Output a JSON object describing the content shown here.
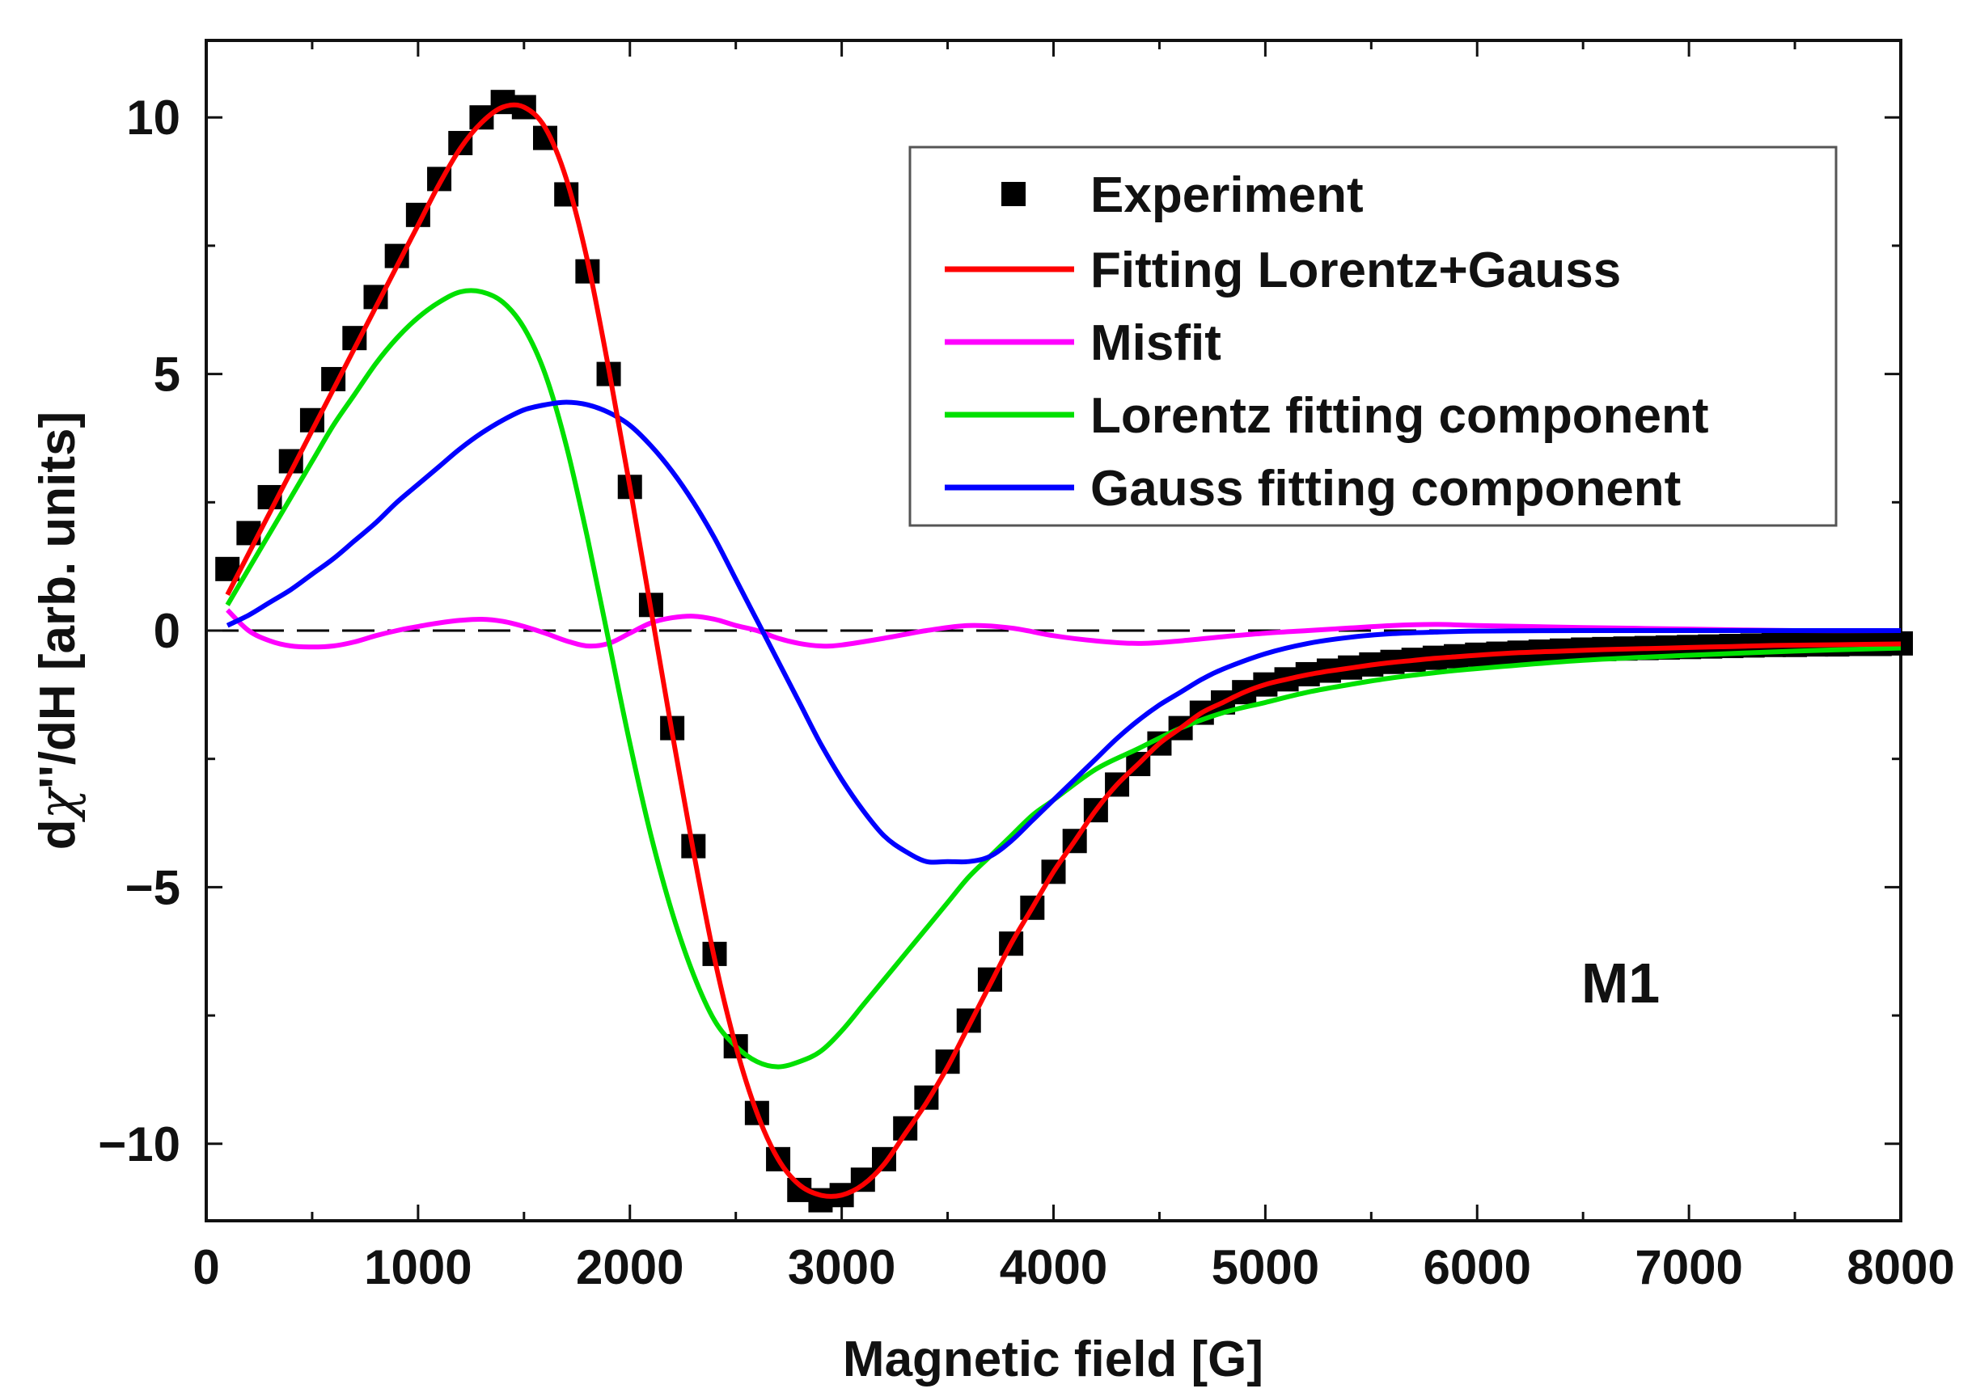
{
  "chart_data": {
    "type": "line",
    "title": "",
    "xlabel": "Magnetic field [G]",
    "ylabel_parts": {
      "pre": "d",
      "chi": "χ",
      "post": "''/dH [arb. units]"
    },
    "xlim": [
      0,
      8000
    ],
    "ylim": [
      -11.5,
      11.5
    ],
    "xticks": [
      0,
      1000,
      2000,
      3000,
      4000,
      5000,
      6000,
      7000,
      8000
    ],
    "xtick_labels": [
      "0",
      "1000",
      "2000",
      "3000",
      "4000",
      "5000",
      "6000",
      "7000",
      "8000"
    ],
    "yticks": [
      10,
      5,
      0,
      -5,
      -10
    ],
    "ytick_labels": [
      "10",
      "5",
      "0",
      "−5",
      "−10"
    ],
    "grid": false,
    "legend_position": "top-right",
    "annotation": "M1",
    "series": [
      {
        "name": "Experiment",
        "kind": "markers",
        "color": "#000000",
        "x": [
          100,
          200,
          300,
          400,
          500,
          600,
          700,
          800,
          900,
          1000,
          1100,
          1200,
          1300,
          1400,
          1500,
          1600,
          1700,
          1800,
          1900,
          2000,
          2100,
          2200,
          2300,
          2400,
          2500,
          2600,
          2700,
          2800,
          2900,
          3000,
          3100,
          3200,
          3300,
          3400,
          3500,
          3600,
          3700,
          3800,
          3900,
          4000,
          4100,
          4200,
          4300,
          4400,
          4500,
          4600,
          4700,
          4800,
          4900,
          5000,
          5100,
          5200,
          5300,
          5400,
          5500,
          5600,
          5700,
          5800,
          5900,
          6000,
          6100,
          6200,
          6300,
          6400,
          6500,
          6600,
          6700,
          6800,
          6900,
          7000,
          7100,
          7200,
          7300,
          7400,
          7500,
          7600,
          7700,
          7800,
          7900,
          8000
        ],
        "y": [
          1.2,
          1.9,
          2.6,
          3.3,
          4.1,
          4.9,
          5.7,
          6.5,
          7.3,
          8.1,
          8.8,
          9.5,
          10.0,
          10.3,
          10.2,
          9.6,
          8.5,
          7.0,
          5.0,
          2.8,
          0.5,
          -1.9,
          -4.2,
          -6.3,
          -8.1,
          -9.4,
          -10.3,
          -10.9,
          -11.1,
          -11.0,
          -10.7,
          -10.3,
          -9.7,
          -9.1,
          -8.4,
          -7.6,
          -6.8,
          -6.1,
          -5.4,
          -4.7,
          -4.1,
          -3.5,
          -3.0,
          -2.6,
          -2.2,
          -1.9,
          -1.6,
          -1.4,
          -1.2,
          -1.05,
          -0.95,
          -0.85,
          -0.78,
          -0.72,
          -0.66,
          -0.61,
          -0.57,
          -0.53,
          -0.5,
          -0.47,
          -0.45,
          -0.43,
          -0.41,
          -0.39,
          -0.37,
          -0.36,
          -0.35,
          -0.34,
          -0.33,
          -0.32,
          -0.31,
          -0.3,
          -0.29,
          -0.28,
          -0.28,
          -0.27,
          -0.27,
          -0.26,
          -0.26,
          -0.25
        ]
      },
      {
        "name": "Fitting Lorentz+Gauss",
        "kind": "line",
        "color": "#ff0000",
        "x": [
          100,
          200,
          300,
          400,
          500,
          600,
          700,
          800,
          900,
          1000,
          1100,
          1200,
          1300,
          1400,
          1500,
          1600,
          1700,
          1800,
          1900,
          2000,
          2100,
          2200,
          2300,
          2400,
          2500,
          2600,
          2700,
          2800,
          2900,
          3000,
          3100,
          3200,
          3300,
          3400,
          3500,
          3600,
          3700,
          3800,
          3900,
          4000,
          4100,
          4200,
          4300,
          4400,
          4500,
          4600,
          4700,
          4800,
          4900,
          5000,
          5100,
          5200,
          5300,
          5400,
          5500,
          5600,
          5700,
          5800,
          5900,
          6000,
          6200,
          6400,
          6600,
          6800,
          7000,
          7200,
          7400,
          7600,
          7800,
          8000
        ],
        "y": [
          0.7,
          1.5,
          2.3,
          3.1,
          3.9,
          4.7,
          5.5,
          6.3,
          7.1,
          7.9,
          8.7,
          9.4,
          9.9,
          10.2,
          10.2,
          9.8,
          8.8,
          7.2,
          5.1,
          2.8,
          0.4,
          -2.0,
          -4.3,
          -6.4,
          -8.1,
          -9.4,
          -10.3,
          -10.8,
          -11.0,
          -11.0,
          -10.8,
          -10.4,
          -9.8,
          -9.2,
          -8.5,
          -7.7,
          -6.9,
          -6.1,
          -5.4,
          -4.7,
          -4.1,
          -3.5,
          -3.0,
          -2.6,
          -2.2,
          -1.9,
          -1.6,
          -1.4,
          -1.2,
          -1.05,
          -0.95,
          -0.86,
          -0.79,
          -0.73,
          -0.67,
          -0.62,
          -0.58,
          -0.54,
          -0.51,
          -0.48,
          -0.43,
          -0.4,
          -0.37,
          -0.35,
          -0.33,
          -0.31,
          -0.29,
          -0.28,
          -0.27,
          -0.26
        ]
      },
      {
        "name": "Misfit",
        "kind": "line",
        "color": "#ff00ff",
        "x": [
          100,
          200,
          300,
          400,
          500,
          600,
          700,
          800,
          900,
          1000,
          1100,
          1200,
          1300,
          1400,
          1500,
          1600,
          1700,
          1800,
          1900,
          2000,
          2100,
          2200,
          2300,
          2400,
          2500,
          2600,
          2700,
          2800,
          2900,
          3000,
          3200,
          3400,
          3600,
          3800,
          4000,
          4200,
          4400,
          4600,
          4800,
          5000,
          5200,
          5400,
          5600,
          5800,
          6000,
          6500,
          7000,
          7500,
          8000
        ],
        "y": [
          0.4,
          0.0,
          -0.2,
          -0.3,
          -0.32,
          -0.3,
          -0.22,
          -0.1,
          0.0,
          0.08,
          0.15,
          0.2,
          0.22,
          0.18,
          0.08,
          -0.05,
          -0.2,
          -0.3,
          -0.25,
          -0.05,
          0.15,
          0.25,
          0.28,
          0.22,
          0.1,
          0.0,
          -0.15,
          -0.25,
          -0.3,
          -0.28,
          -0.15,
          0.0,
          0.1,
          0.05,
          -0.1,
          -0.2,
          -0.25,
          -0.2,
          -0.12,
          -0.05,
          0.0,
          0.05,
          0.1,
          0.12,
          0.1,
          0.06,
          0.03,
          0.0,
          0.0
        ]
      },
      {
        "name": "Lorentz fitting component",
        "kind": "line",
        "color": "#00e000",
        "x": [
          100,
          200,
          300,
          400,
          500,
          600,
          700,
          800,
          900,
          1000,
          1100,
          1200,
          1300,
          1400,
          1500,
          1600,
          1700,
          1800,
          1900,
          2000,
          2100,
          2200,
          2300,
          2400,
          2500,
          2600,
          2700,
          2800,
          2900,
          3000,
          3100,
          3200,
          3300,
          3400,
          3500,
          3600,
          3700,
          3800,
          3900,
          4000,
          4200,
          4400,
          4600,
          4800,
          5000,
          5200,
          5400,
          5600,
          5800,
          6000,
          6500,
          7000,
          7500,
          8000
        ],
        "y": [
          0.5,
          1.2,
          1.9,
          2.6,
          3.3,
          4.0,
          4.6,
          5.2,
          5.7,
          6.1,
          6.4,
          6.6,
          6.6,
          6.4,
          5.9,
          5.0,
          3.6,
          1.8,
          -0.2,
          -2.2,
          -4.0,
          -5.5,
          -6.7,
          -7.6,
          -8.1,
          -8.4,
          -8.5,
          -8.4,
          -8.2,
          -7.8,
          -7.3,
          -6.8,
          -6.3,
          -5.8,
          -5.3,
          -4.8,
          -4.4,
          -4.0,
          -3.6,
          -3.3,
          -2.7,
          -2.3,
          -1.9,
          -1.6,
          -1.4,
          -1.2,
          -1.05,
          -0.92,
          -0.82,
          -0.74,
          -0.58,
          -0.48,
          -0.4,
          -0.34
        ]
      },
      {
        "name": "Gauss fitting component",
        "kind": "line",
        "color": "#0000ff",
        "x": [
          100,
          200,
          300,
          400,
          500,
          600,
          700,
          800,
          900,
          1000,
          1100,
          1200,
          1300,
          1400,
          1500,
          1600,
          1700,
          1800,
          1900,
          2000,
          2100,
          2200,
          2300,
          2400,
          2500,
          2600,
          2700,
          2800,
          2900,
          3000,
          3100,
          3200,
          3300,
          3400,
          3500,
          3600,
          3700,
          3800,
          3900,
          4000,
          4100,
          4200,
          4300,
          4400,
          4500,
          4600,
          4700,
          4800,
          5000,
          5200,
          5400,
          5600,
          5800,
          6000,
          6500,
          7000,
          7500,
          8000
        ],
        "y": [
          0.1,
          0.3,
          0.55,
          0.8,
          1.1,
          1.4,
          1.75,
          2.1,
          2.5,
          2.85,
          3.2,
          3.55,
          3.85,
          4.1,
          4.3,
          4.4,
          4.45,
          4.4,
          4.25,
          4.0,
          3.6,
          3.1,
          2.5,
          1.8,
          1.0,
          0.2,
          -0.6,
          -1.4,
          -2.2,
          -2.9,
          -3.5,
          -4.0,
          -4.3,
          -4.5,
          -4.5,
          -4.5,
          -4.4,
          -4.1,
          -3.7,
          -3.3,
          -2.9,
          -2.5,
          -2.1,
          -1.75,
          -1.45,
          -1.2,
          -0.95,
          -0.75,
          -0.45,
          -0.25,
          -0.13,
          -0.06,
          -0.03,
          -0.01,
          0.0,
          0.0,
          0.0,
          0.0
        ]
      }
    ]
  }
}
